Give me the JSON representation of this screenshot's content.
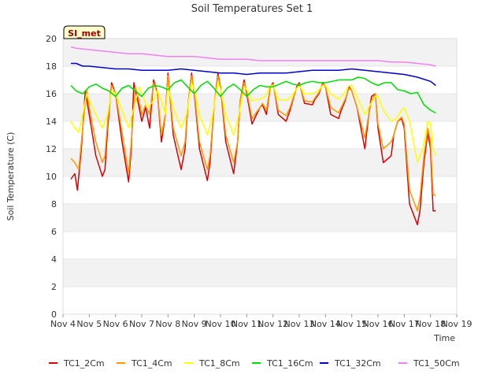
{
  "chart_data": {
    "type": "line",
    "title": "Soil Temperatures Set 1",
    "xlabel": "Time",
    "ylabel": "Soil Temperature (C)",
    "badge": "SI_met",
    "xlim": [
      4,
      19
    ],
    "ylim": [
      0,
      20
    ],
    "x_ticks": [
      4,
      5,
      6,
      7,
      8,
      9,
      10,
      11,
      12,
      13,
      14,
      15,
      16,
      17,
      18,
      19
    ],
    "x_tick_labels": [
      "Nov 4",
      "Nov 5",
      "Nov 6",
      "Nov 7",
      "Nov 8",
      "Nov 9",
      "Nov 10",
      "Nov 11",
      "Nov 12",
      "Nov 13",
      "Nov 14",
      "Nov 15",
      "Nov 16",
      "Nov 17",
      "Nov 18",
      "Nov 19"
    ],
    "y_ticks": [
      0,
      2,
      4,
      6,
      8,
      10,
      12,
      14,
      16,
      18,
      20
    ],
    "y_tick_labels": [
      "0",
      "2",
      "4",
      "6",
      "8",
      "10",
      "12",
      "14",
      "16",
      "18",
      "20"
    ],
    "grid": "horizontal banded",
    "legend_position": "bottom",
    "x_unit": "day of November",
    "series": [
      {
        "name": "TC1_2Cm",
        "color": "#dd0000",
        "x": [
          4.3,
          4.45,
          4.55,
          4.7,
          4.85,
          5.0,
          5.25,
          5.5,
          5.6,
          5.7,
          5.85,
          6.0,
          6.25,
          6.5,
          6.6,
          6.7,
          6.9,
          7.0,
          7.15,
          7.3,
          7.45,
          7.6,
          7.75,
          7.9,
          8.0,
          8.2,
          8.5,
          8.65,
          8.75,
          8.9,
          9.0,
          9.2,
          9.5,
          9.6,
          9.75,
          9.9,
          10.0,
          10.2,
          10.5,
          10.65,
          10.75,
          10.9,
          11.0,
          11.2,
          11.5,
          11.6,
          11.75,
          11.9,
          12.0,
          12.2,
          12.5,
          12.65,
          12.75,
          12.9,
          13.0,
          13.2,
          13.5,
          13.6,
          13.75,
          13.9,
          14.0,
          14.2,
          14.5,
          14.6,
          14.75,
          14.9,
          15.0,
          15.2,
          15.5,
          15.65,
          15.75,
          15.9,
          16.0,
          16.2,
          16.5,
          16.6,
          16.75,
          16.9,
          17.0,
          17.2,
          17.5,
          17.6,
          17.75,
          17.9,
          18.0,
          18.1,
          18.2
        ],
        "y": [
          9.8,
          10.2,
          9.0,
          12.0,
          16.2,
          14.5,
          11.5,
          10.0,
          10.5,
          13.5,
          16.8,
          16.0,
          12.5,
          9.6,
          12.0,
          16.8,
          15.0,
          14.0,
          15.0,
          13.5,
          17.0,
          16.0,
          12.5,
          14.5,
          17.5,
          13.0,
          10.5,
          12.0,
          15.0,
          17.5,
          16.0,
          12.0,
          9.7,
          11.0,
          15.0,
          17.5,
          16.5,
          12.5,
          10.2,
          12.5,
          15.5,
          17.0,
          16.0,
          13.8,
          15.0,
          15.2,
          14.5,
          16.5,
          16.8,
          14.5,
          14.0,
          14.8,
          15.5,
          16.5,
          16.8,
          15.3,
          15.2,
          15.6,
          16.0,
          16.8,
          16.5,
          14.5,
          14.2,
          14.8,
          15.5,
          16.5,
          16.2,
          15.0,
          12.0,
          14.5,
          15.8,
          16.0,
          13.5,
          11.0,
          11.5,
          13.0,
          14.0,
          14.2,
          13.5,
          8.0,
          6.5,
          7.5,
          11.0,
          13.2,
          12.0,
          7.5,
          7.5
        ]
      },
      {
        "name": "TC1_4Cm",
        "color": "#ff9900",
        "x": [
          4.3,
          4.45,
          4.6,
          4.75,
          4.9,
          5.0,
          5.25,
          5.5,
          5.6,
          5.7,
          5.85,
          6.0,
          6.25,
          6.5,
          6.6,
          6.75,
          6.9,
          7.0,
          7.15,
          7.3,
          7.45,
          7.6,
          7.75,
          7.9,
          8.0,
          8.2,
          8.5,
          8.65,
          8.75,
          8.9,
          9.0,
          9.2,
          9.5,
          9.6,
          9.75,
          9.9,
          10.0,
          10.2,
          10.5,
          10.65,
          10.75,
          10.9,
          11.0,
          11.2,
          11.5,
          11.6,
          11.75,
          11.9,
          12.0,
          12.2,
          12.5,
          12.65,
          12.75,
          12.9,
          13.0,
          13.2,
          13.5,
          13.6,
          13.75,
          13.9,
          14.0,
          14.2,
          14.5,
          14.6,
          14.75,
          14.9,
          15.0,
          15.2,
          15.5,
          15.65,
          15.75,
          15.9,
          16.0,
          16.2,
          16.5,
          16.6,
          16.75,
          16.9,
          17.0,
          17.2,
          17.5,
          17.6,
          17.75,
          17.9,
          18.0,
          18.1,
          18.2
        ],
        "y": [
          11.3,
          11.0,
          10.5,
          13.5,
          16.3,
          15.0,
          12.5,
          11.0,
          11.5,
          14.0,
          16.6,
          16.0,
          13.2,
          10.2,
          12.5,
          16.5,
          15.5,
          14.5,
          15.2,
          14.5,
          16.8,
          16.0,
          13.0,
          14.5,
          17.3,
          13.5,
          11.5,
          12.5,
          15.0,
          17.3,
          16.2,
          12.5,
          10.5,
          11.5,
          15.0,
          17.3,
          16.5,
          13.0,
          11.0,
          12.5,
          15.5,
          16.8,
          16.2,
          14.2,
          15.0,
          15.3,
          14.8,
          16.5,
          16.7,
          14.8,
          14.4,
          15.0,
          15.6,
          16.4,
          16.7,
          15.5,
          15.4,
          15.7,
          16.1,
          16.7,
          16.5,
          15.0,
          14.6,
          15.0,
          15.6,
          16.4,
          16.2,
          15.0,
          12.8,
          14.5,
          15.5,
          16.0,
          13.8,
          12.0,
          12.5,
          13.0,
          14.0,
          14.3,
          13.8,
          9.0,
          7.5,
          8.5,
          11.5,
          13.5,
          12.5,
          8.7,
          8.6
        ]
      },
      {
        "name": "TC1_8Cm",
        "color": "#ffff00",
        "x": [
          4.3,
          4.45,
          4.6,
          4.75,
          4.9,
          5.0,
          5.25,
          5.5,
          5.7,
          5.85,
          6.0,
          6.25,
          6.5,
          6.7,
          6.9,
          7.0,
          7.2,
          7.45,
          7.6,
          7.75,
          7.9,
          8.0,
          8.2,
          8.5,
          8.7,
          8.9,
          9.0,
          9.2,
          9.5,
          9.7,
          9.9,
          10.0,
          10.2,
          10.5,
          10.7,
          10.9,
          11.0,
          11.2,
          11.5,
          11.7,
          11.9,
          12.0,
          12.2,
          12.5,
          12.7,
          12.9,
          13.0,
          13.2,
          13.5,
          13.7,
          13.9,
          14.0,
          14.2,
          14.5,
          14.7,
          14.9,
          15.0,
          15.2,
          15.5,
          15.7,
          15.9,
          16.0,
          16.2,
          16.5,
          16.7,
          16.9,
          17.0,
          17.2,
          17.5,
          17.7,
          17.9,
          18.0,
          18.1,
          18.2
        ],
        "y": [
          14.0,
          13.5,
          13.2,
          14.5,
          16.0,
          15.5,
          14.5,
          13.5,
          14.5,
          16.2,
          16.0,
          14.8,
          13.5,
          15.0,
          16.5,
          16.0,
          15.0,
          15.5,
          16.2,
          15.5,
          14.5,
          16.5,
          15.0,
          13.5,
          14.5,
          16.8,
          16.3,
          14.5,
          13.0,
          14.5,
          16.8,
          16.3,
          14.5,
          13.0,
          14.5,
          16.5,
          16.3,
          15.5,
          15.6,
          15.8,
          16.6,
          16.6,
          15.6,
          15.5,
          15.8,
          16.4,
          16.6,
          16.0,
          16.0,
          16.2,
          16.6,
          16.6,
          16.0,
          15.6,
          16.0,
          16.6,
          16.6,
          15.8,
          14.5,
          15.2,
          15.8,
          15.8,
          14.8,
          14.0,
          14.2,
          14.8,
          15.0,
          14.0,
          11.0,
          12.0,
          14.0,
          13.8,
          12.0,
          11.5
        ]
      },
      {
        "name": "TC1_16Cm",
        "color": "#00dd00",
        "x": [
          4.3,
          4.5,
          4.75,
          5.0,
          5.25,
          5.5,
          5.75,
          6.0,
          6.25,
          6.5,
          6.75,
          7.0,
          7.25,
          7.5,
          7.75,
          8.0,
          8.25,
          8.5,
          8.75,
          9.0,
          9.25,
          9.5,
          9.75,
          10.0,
          10.25,
          10.5,
          10.75,
          11.0,
          11.25,
          11.5,
          11.75,
          12.0,
          12.25,
          12.5,
          12.75,
          13.0,
          13.25,
          13.5,
          13.75,
          14.0,
          14.25,
          14.5,
          14.75,
          15.0,
          15.25,
          15.5,
          15.75,
          16.0,
          16.25,
          16.5,
          16.75,
          17.0,
          17.25,
          17.5,
          17.75,
          18.0,
          18.2
        ],
        "y": [
          16.6,
          16.2,
          16.0,
          16.5,
          16.7,
          16.4,
          16.2,
          15.8,
          16.4,
          16.6,
          16.2,
          15.8,
          16.4,
          16.6,
          16.5,
          16.3,
          16.8,
          17.0,
          16.5,
          16.0,
          16.6,
          16.9,
          16.4,
          15.8,
          16.4,
          16.7,
          16.3,
          15.8,
          16.3,
          16.6,
          16.5,
          16.5,
          16.7,
          16.9,
          16.7,
          16.6,
          16.8,
          16.9,
          16.8,
          16.8,
          16.9,
          17.0,
          17.0,
          17.0,
          17.2,
          17.1,
          16.8,
          16.6,
          16.8,
          16.8,
          16.3,
          16.2,
          16.0,
          16.1,
          15.2,
          14.8,
          14.6
        ]
      },
      {
        "name": "TC1_32Cm",
        "color": "#0000cc",
        "x": [
          4.3,
          4.5,
          4.75,
          5.0,
          5.5,
          6.0,
          6.5,
          7.0,
          7.5,
          8.0,
          8.5,
          9.0,
          9.5,
          10.0,
          10.5,
          11.0,
          11.5,
          12.0,
          12.5,
          13.0,
          13.5,
          14.0,
          14.5,
          15.0,
          15.5,
          16.0,
          16.5,
          17.0,
          17.5,
          18.0,
          18.2
        ],
        "y": [
          18.2,
          18.2,
          18.0,
          18.0,
          17.9,
          17.8,
          17.8,
          17.7,
          17.7,
          17.7,
          17.8,
          17.7,
          17.6,
          17.5,
          17.5,
          17.4,
          17.5,
          17.5,
          17.5,
          17.6,
          17.7,
          17.7,
          17.7,
          17.8,
          17.7,
          17.6,
          17.5,
          17.4,
          17.2,
          16.9,
          16.6
        ]
      },
      {
        "name": "TC1_50Cm",
        "color": "#ee82ee",
        "x": [
          4.3,
          4.5,
          5.0,
          5.5,
          6.0,
          6.5,
          7.0,
          7.5,
          8.0,
          8.5,
          9.0,
          9.5,
          10.0,
          10.5,
          11.0,
          11.5,
          12.0,
          12.5,
          13.0,
          13.5,
          14.0,
          14.5,
          15.0,
          15.5,
          16.0,
          16.5,
          17.0,
          17.5,
          18.0,
          18.2
        ],
        "y": [
          19.4,
          19.3,
          19.2,
          19.1,
          19.0,
          18.9,
          18.9,
          18.8,
          18.7,
          18.7,
          18.7,
          18.6,
          18.5,
          18.5,
          18.5,
          18.4,
          18.4,
          18.4,
          18.4,
          18.4,
          18.4,
          18.4,
          18.4,
          18.4,
          18.4,
          18.3,
          18.3,
          18.2,
          18.1,
          18.0
        ]
      }
    ]
  }
}
